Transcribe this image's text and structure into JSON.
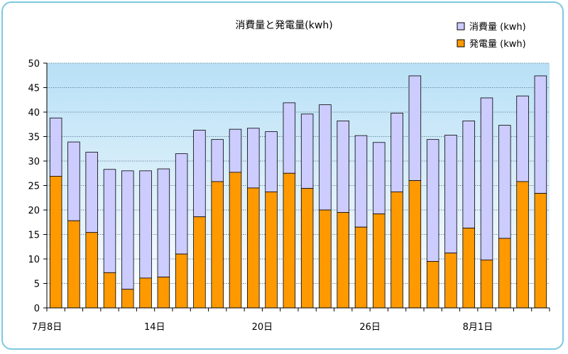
{
  "chart_data": {
    "type": "bar",
    "stacked": true,
    "title": "消費量と発電量(kwh)",
    "ylim": [
      0,
      50
    ],
    "yticks": [
      0,
      5,
      10,
      15,
      20,
      25,
      30,
      35,
      40,
      45,
      50
    ],
    "x_tick_labels": [
      {
        "index": 0,
        "label": "7月8日"
      },
      {
        "index": 6,
        "label": "14日"
      },
      {
        "index": 12,
        "label": "20日"
      },
      {
        "index": 18,
        "label": "26日"
      },
      {
        "index": 24,
        "label": "8月1日"
      }
    ],
    "category_count": 28,
    "legend_position": "top-right",
    "grid": true,
    "series": [
      {
        "name": "発電量 (kwh)",
        "color": "#ff9900",
        "values": [
          26.9,
          17.8,
          15.4,
          7.2,
          3.8,
          6.1,
          6.3,
          11.0,
          18.6,
          25.8,
          27.7,
          24.5,
          23.7,
          27.5,
          24.4,
          20.0,
          19.5,
          16.5,
          19.2,
          23.7,
          26.0,
          9.5,
          11.2,
          16.3,
          9.8,
          14.2,
          25.8,
          23.4
        ]
      },
      {
        "name": "消費量 (kwh)",
        "color": "#ccccff",
        "totals": [
          38.8,
          33.9,
          31.8,
          28.3,
          28.0,
          28.0,
          28.4,
          31.5,
          36.3,
          34.4,
          36.5,
          36.7,
          36.0,
          41.9,
          39.6,
          41.5,
          38.2,
          35.2,
          33.8,
          39.8,
          47.4,
          34.4,
          35.3,
          38.2,
          42.9,
          37.3,
          43.3,
          47.4
        ]
      }
    ]
  },
  "legend": {
    "items": [
      {
        "label": "消費量 (kwh)",
        "color": "#ccccff"
      },
      {
        "label": "発電量 (kwh)",
        "color": "#ff9900"
      }
    ]
  }
}
